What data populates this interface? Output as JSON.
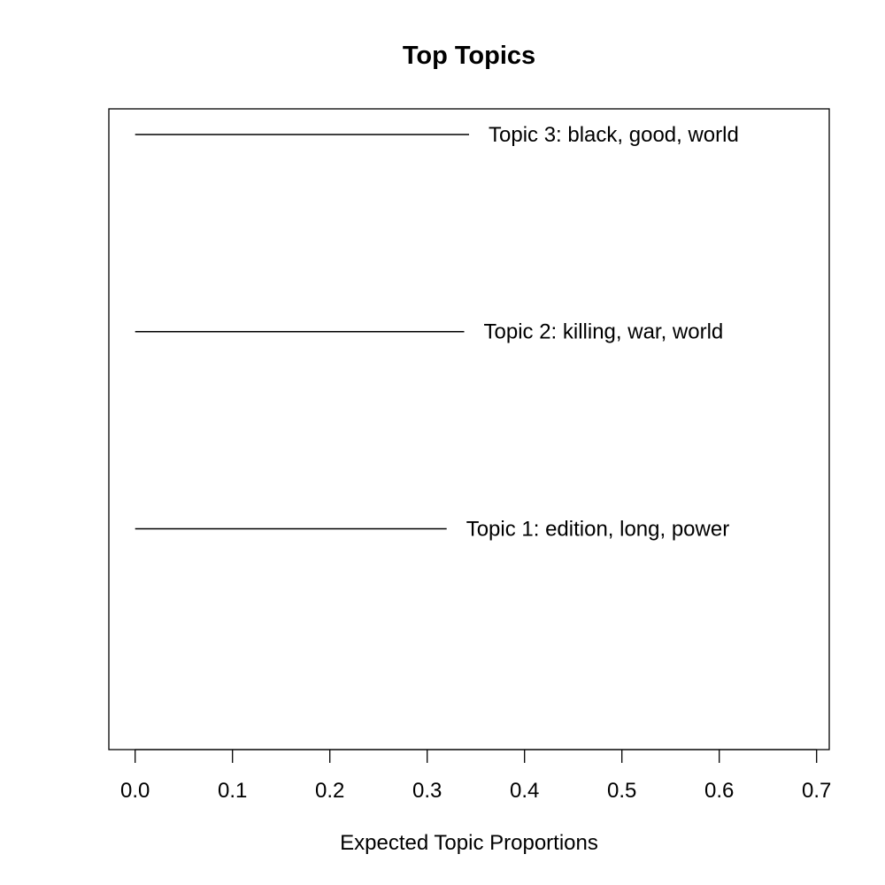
{
  "chart_data": {
    "type": "bar",
    "title": "Top Topics",
    "xlabel": "Expected Topic Proportions",
    "ylabel": "",
    "xlim": [
      -0.027,
      0.713
    ],
    "xticks": [
      0.0,
      0.1,
      0.2,
      0.3,
      0.4,
      0.5,
      0.6,
      0.7
    ],
    "tick_labels": [
      "0.0",
      "0.1",
      "0.2",
      "0.3",
      "0.4",
      "0.5",
      "0.6",
      "0.7"
    ],
    "categories": [
      "Topic 1: edition, long, power",
      "Topic 2: killing, war, world",
      "Topic 3: black, good, world"
    ],
    "values": [
      0.32,
      0.338,
      0.343
    ],
    "grid": false,
    "legend": "none",
    "colors": {
      "line": "#000000",
      "axis": "#000000",
      "text": "#000000",
      "background": "#ffffff"
    }
  }
}
